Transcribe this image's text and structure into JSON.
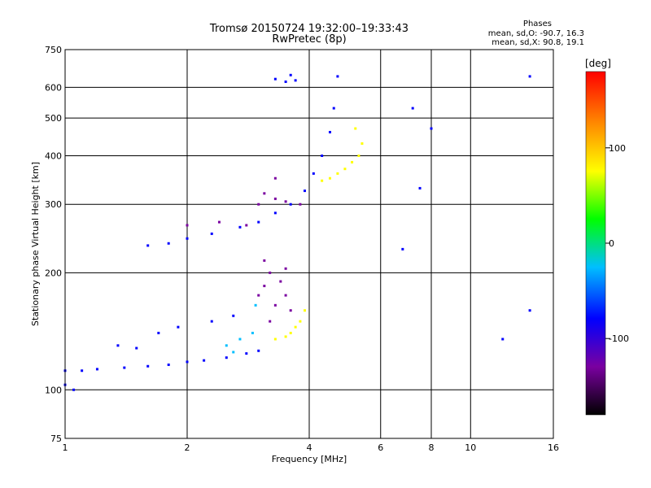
{
  "chart_data": {
    "type": "scatter",
    "title": "Tromsø 20150724 19:32:00–19:33:43",
    "subtitle": "RwPretec (8p)",
    "xlabel": "Frequency [MHz]",
    "ylabel": "Stationary phase Virtual Height [km]",
    "x_scale": "log",
    "y_scale": "log",
    "xlim": [
      1,
      16
    ],
    "ylim": [
      75,
      750
    ],
    "x_ticks": [
      "1",
      "2",
      "4",
      "6",
      "8",
      "10",
      "16"
    ],
    "y_ticks": [
      "75",
      "100",
      "200",
      "300",
      "400",
      "500",
      "600",
      "750"
    ],
    "grid": true,
    "colorbar": {
      "label": "[deg]",
      "range": [
        -180,
        180
      ],
      "ticks": [
        "100",
        "0",
        "-100"
      ],
      "colors": [
        "#000000",
        "#7a00a0",
        "#0000ff",
        "#00bfff",
        "#00ff00",
        "#ffff00",
        "#ff8000",
        "#ff0000"
      ]
    },
    "stats": {
      "heading": "Phases",
      "line_o": "mean, sd,O: -90.7, 16.3",
      "line_x": "mean, sd,X:  90.8, 19.1"
    },
    "series": [
      {
        "phase": -95,
        "points": [
          [
            1.0,
            112
          ],
          [
            1.1,
            112
          ],
          [
            1.2,
            113
          ],
          [
            1.4,
            114
          ],
          [
            1.6,
            115
          ],
          [
            1.8,
            116
          ],
          [
            2.0,
            118
          ],
          [
            2.2,
            119
          ],
          [
            2.5,
            121
          ],
          [
            2.8,
            124
          ],
          [
            3.0,
            126
          ]
        ]
      },
      {
        "phase": -90,
        "points": [
          [
            1.35,
            130
          ],
          [
            1.5,
            128
          ],
          [
            1.7,
            140
          ],
          [
            1.9,
            145
          ],
          [
            2.3,
            150
          ],
          [
            2.6,
            155
          ],
          [
            1.0,
            103
          ],
          [
            1.05,
            100
          ]
        ]
      },
      {
        "phase": -110,
        "points": [
          [
            3.0,
            175
          ],
          [
            3.1,
            185
          ],
          [
            3.2,
            200
          ],
          [
            3.3,
            165
          ],
          [
            3.4,
            190
          ],
          [
            3.5,
            175
          ],
          [
            3.6,
            160
          ],
          [
            3.2,
            150
          ],
          [
            3.1,
            215
          ],
          [
            3.5,
            205
          ]
        ]
      },
      {
        "phase": 100,
        "points": [
          [
            3.3,
            135
          ],
          [
            3.5,
            137
          ],
          [
            3.6,
            140
          ],
          [
            3.7,
            145
          ],
          [
            3.8,
            150
          ],
          [
            3.9,
            160
          ]
        ]
      },
      {
        "phase": -20,
        "points": [
          [
            2.5,
            130
          ],
          [
            2.7,
            135
          ],
          [
            2.9,
            140
          ],
          [
            2.95,
            165
          ],
          [
            2.6,
            125
          ]
        ]
      },
      {
        "phase": -100,
        "points": [
          [
            1.6,
            235
          ],
          [
            1.8,
            238
          ],
          [
            2.0,
            245
          ],
          [
            2.3,
            252
          ],
          [
            2.7,
            262
          ],
          [
            3.0,
            270
          ],
          [
            3.3,
            285
          ],
          [
            3.6,
            300
          ],
          [
            3.9,
            325
          ],
          [
            4.1,
            360
          ],
          [
            4.3,
            400
          ],
          [
            4.5,
            460
          ],
          [
            4.6,
            530
          ],
          [
            4.7,
            640
          ]
        ]
      },
      {
        "phase": -105,
        "points": [
          [
            2.0,
            265
          ],
          [
            2.4,
            270
          ],
          [
            2.8,
            265
          ],
          [
            3.1,
            320
          ],
          [
            3.3,
            310
          ],
          [
            3.5,
            305
          ],
          [
            3.8,
            300
          ],
          [
            3.3,
            350
          ],
          [
            3.0,
            300
          ]
        ]
      },
      {
        "phase": -100,
        "points": [
          [
            3.3,
            630
          ],
          [
            3.5,
            620
          ],
          [
            3.7,
            625
          ],
          [
            3.6,
            645
          ]
        ]
      },
      {
        "phase": 100,
        "points": [
          [
            4.3,
            345
          ],
          [
            4.5,
            350
          ],
          [
            4.7,
            360
          ],
          [
            4.9,
            370
          ],
          [
            5.1,
            385
          ],
          [
            5.3,
            400
          ],
          [
            5.4,
            430
          ],
          [
            5.2,
            470
          ]
        ]
      },
      {
        "phase": -100,
        "points": [
          [
            14.0,
            640
          ],
          [
            14.0,
            160
          ],
          [
            12.0,
            135
          ],
          [
            6.8,
            230
          ],
          [
            7.2,
            530
          ],
          [
            8.0,
            470
          ],
          [
            7.5,
            330
          ]
        ]
      }
    ]
  }
}
